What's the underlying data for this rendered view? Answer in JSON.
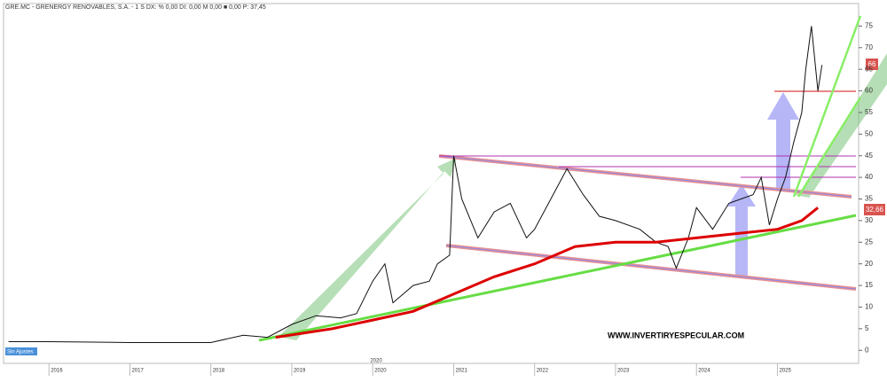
{
  "chart_data": {
    "type": "line",
    "title": "GRE.MC - GRENERGY RENOVABLES, S.A. - 1 S  DX: % 0,00  DI: 0,00  M 0,00  ■ 0,00  P: 37,45",
    "watermark": "WWW.INVERTIRYESPECULAR.COM",
    "adjust_label": "Sin Ajustes",
    "period_label": "2020",
    "price_label": "66",
    "ma_label": "32,66",
    "xlim": [
      2015.45,
      2025.97
    ],
    "xticks": [
      2016,
      2017,
      2018,
      2019,
      2020,
      2021,
      2022,
      2023,
      2024,
      2025
    ],
    "ylim": [
      -2,
      80
    ],
    "yticks": [
      0,
      5,
      10,
      15,
      20,
      25,
      30,
      35,
      40,
      45,
      50,
      55,
      60,
      65,
      70,
      75
    ],
    "grid": false,
    "series": [
      {
        "color": "#111111",
        "x": [
          2015.5,
          2016,
          2017,
          2018,
          2018.4,
          2018.7,
          2019,
          2019.3,
          2019.6,
          2019.8,
          2020.0,
          2020.15,
          2020.25,
          2020.5,
          2020.7,
          2020.8,
          2020.95,
          2021.0,
          2021.1,
          2021.3,
          2021.5,
          2021.7,
          2021.9,
          2022.0,
          2022.2,
          2022.4,
          2022.6,
          2022.8,
          2023.0,
          2023.3,
          2023.5,
          2023.65,
          2023.75,
          2023.9,
          2024.0,
          2024.2,
          2024.4,
          2024.55,
          2024.7,
          2024.8,
          2024.9,
          2025.0,
          2025.1,
          2025.2,
          2025.3,
          2025.35,
          2025.42,
          2025.5,
          2025.55
        ],
        "values": [
          2,
          2,
          1.8,
          1.8,
          3.5,
          3,
          6,
          8,
          7.5,
          8.5,
          16,
          20,
          11,
          15,
          16,
          20,
          22,
          45,
          35,
          26,
          32,
          34,
          26,
          28,
          35,
          42,
          36,
          31,
          30,
          28,
          25,
          24,
          19,
          26,
          33,
          28,
          34,
          35,
          36,
          40,
          29,
          35,
          40,
          48,
          55,
          65,
          75,
          60,
          66
        ]
      },
      {
        "color": "#dd0000",
        "x": [
          2018.8,
          2019.5,
          2020.0,
          2020.5,
          2021.0,
          2021.5,
          2022.0,
          2022.5,
          2023.0,
          2023.5,
          2024.0,
          2024.5,
          2025.0,
          2025.3,
          2025.5
        ],
        "values": [
          3,
          5,
          7,
          9,
          13,
          17,
          20,
          24,
          25,
          25,
          26,
          27,
          28,
          30,
          33
        ]
      }
    ]
  }
}
